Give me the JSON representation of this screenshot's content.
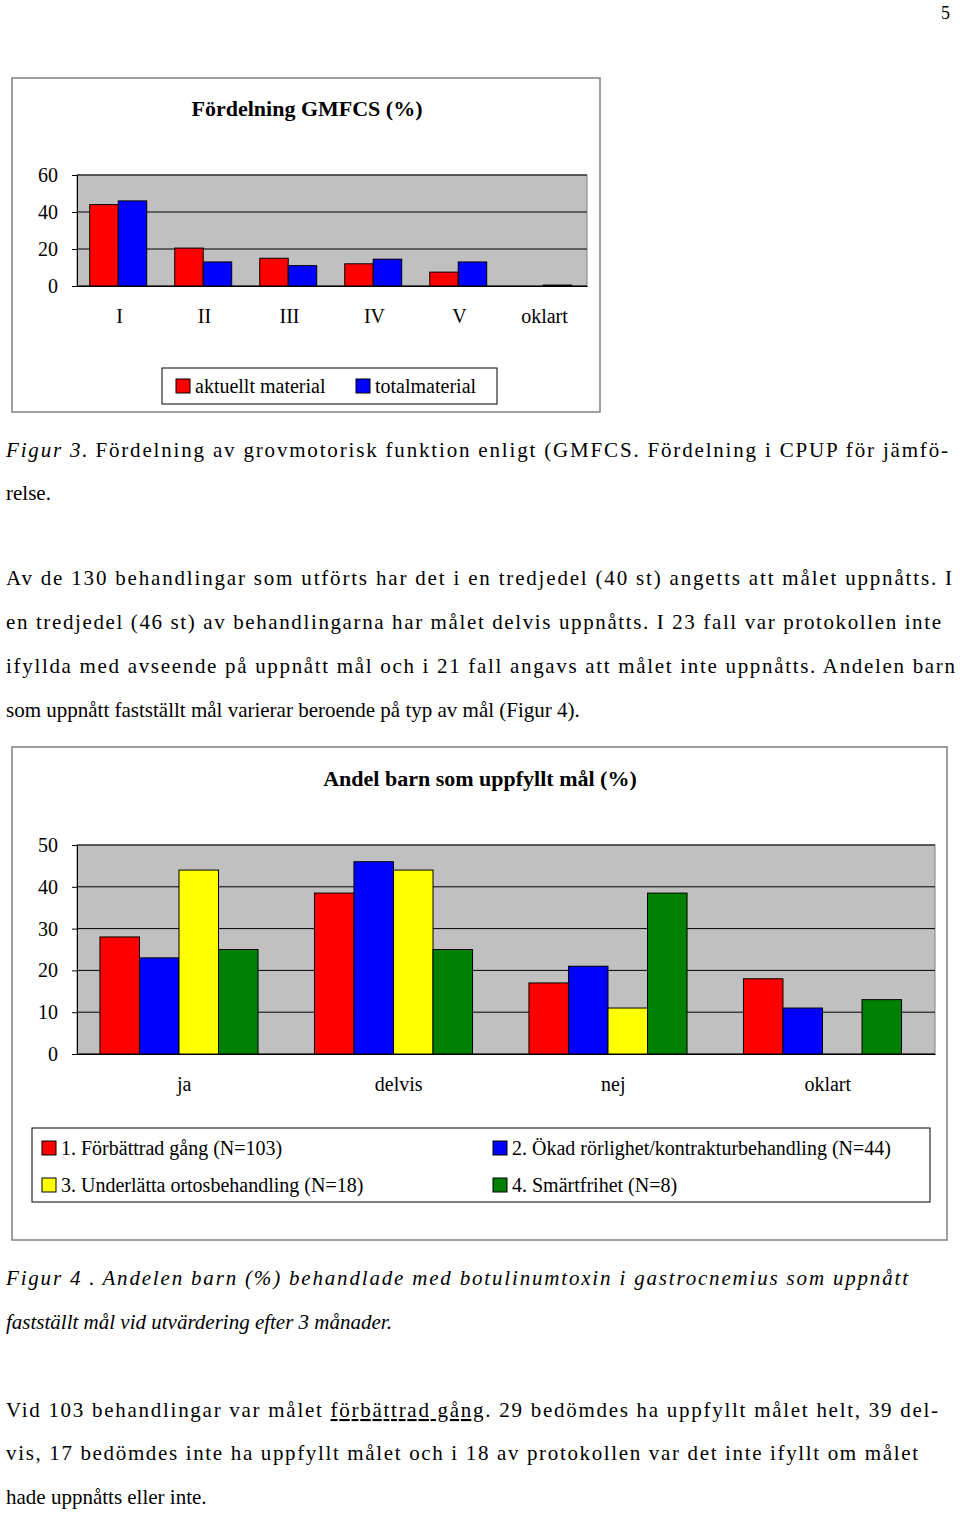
{
  "document": {
    "page_number": "5",
    "figure_3_caption": {
      "label": "Figur 3.",
      "lines": [
        "Fördelning av grovmotorisk funktion enligt (GMFCS. Fördelning i CPUP för jämfö-",
        "relse."
      ]
    },
    "paragraph_1": {
      "lines": [
        "Av de 130 behandlingar som utförts har det i en tredjedel (40 st) angetts att målet uppnåtts. I",
        "en tredjedel (46 st) av behandlingarna har målet delvis uppnåtts. I 23 fall var protokollen inte",
        "ifyllda med avseende på uppnått mål och i 21 fall angavs att målet inte uppnåtts. Andelen barn",
        "som uppnått fastställt mål varierar beroende på typ av mål (Figur 4)."
      ]
    },
    "figure_4_caption": {
      "label": "Figur 4 .",
      "lines": [
        "Andelen barn (%) behandlade med botulinumtoxin i gastrocnemius som uppnått",
        "fastställt mål vid utvärdering efter 3 månader."
      ]
    },
    "paragraph_2": {
      "lines": [
        [
          {
            "text": "Vid 103 behandlingar var målet "
          },
          {
            "text": "förbättrad gång",
            "underline": true
          },
          {
            "text": ". 29 bedömdes ha uppfyllt målet helt, 39 del-"
          }
        ],
        "vis, 17 bedömdes inte ha uppfyllt målet och i 18 av protokollen var det inte ifyllt om målet",
        "hade uppnåtts eller inte."
      ]
    }
  },
  "chart_data": [
    {
      "type": "bar",
      "title": "Fördelning GMFCS (%)",
      "categories": [
        "I",
        "II",
        "III",
        "IV",
        "V",
        "oklart"
      ],
      "series": [
        {
          "name": "aktuellt material",
          "color": "#ff0000",
          "values": [
            44,
            20.5,
            15,
            12,
            7.5,
            0
          ]
        },
        {
          "name": "totalmaterial",
          "color": "#0000ff",
          "values": [
            46,
            13,
            11,
            14.5,
            13,
            0.5
          ]
        }
      ],
      "ylim": [
        0,
        60
      ],
      "yticks": [
        0,
        20,
        40,
        60
      ],
      "grid": true,
      "legend": "bottom"
    },
    {
      "type": "bar",
      "title": "Andel barn som uppfyllt mål (%)",
      "categories": [
        "ja",
        "delvis",
        "nej",
        "oklart"
      ],
      "series": [
        {
          "name": "1. Förbättrad gång (N=103)",
          "color": "#ff0000",
          "values": [
            28,
            38.5,
            17,
            18
          ]
        },
        {
          "name": "2. Ökad rörlighet/kontrakturbehandling (N=44)",
          "color": "#0000ff",
          "values": [
            23,
            46,
            21,
            11
          ]
        },
        {
          "name": "3. Underlätta ortosbehandling (N=18)",
          "color": "#ffff00",
          "values": [
            44,
            44,
            11,
            null
          ]
        },
        {
          "name": "4. Smärtfrihet (N=8)",
          "color": "#008000",
          "values": [
            25,
            25,
            38.5,
            13
          ]
        }
      ],
      "ylim": [
        0,
        50
      ],
      "yticks": [
        0,
        10,
        20,
        30,
        40,
        50
      ],
      "grid": true,
      "legend": "bottom"
    }
  ]
}
